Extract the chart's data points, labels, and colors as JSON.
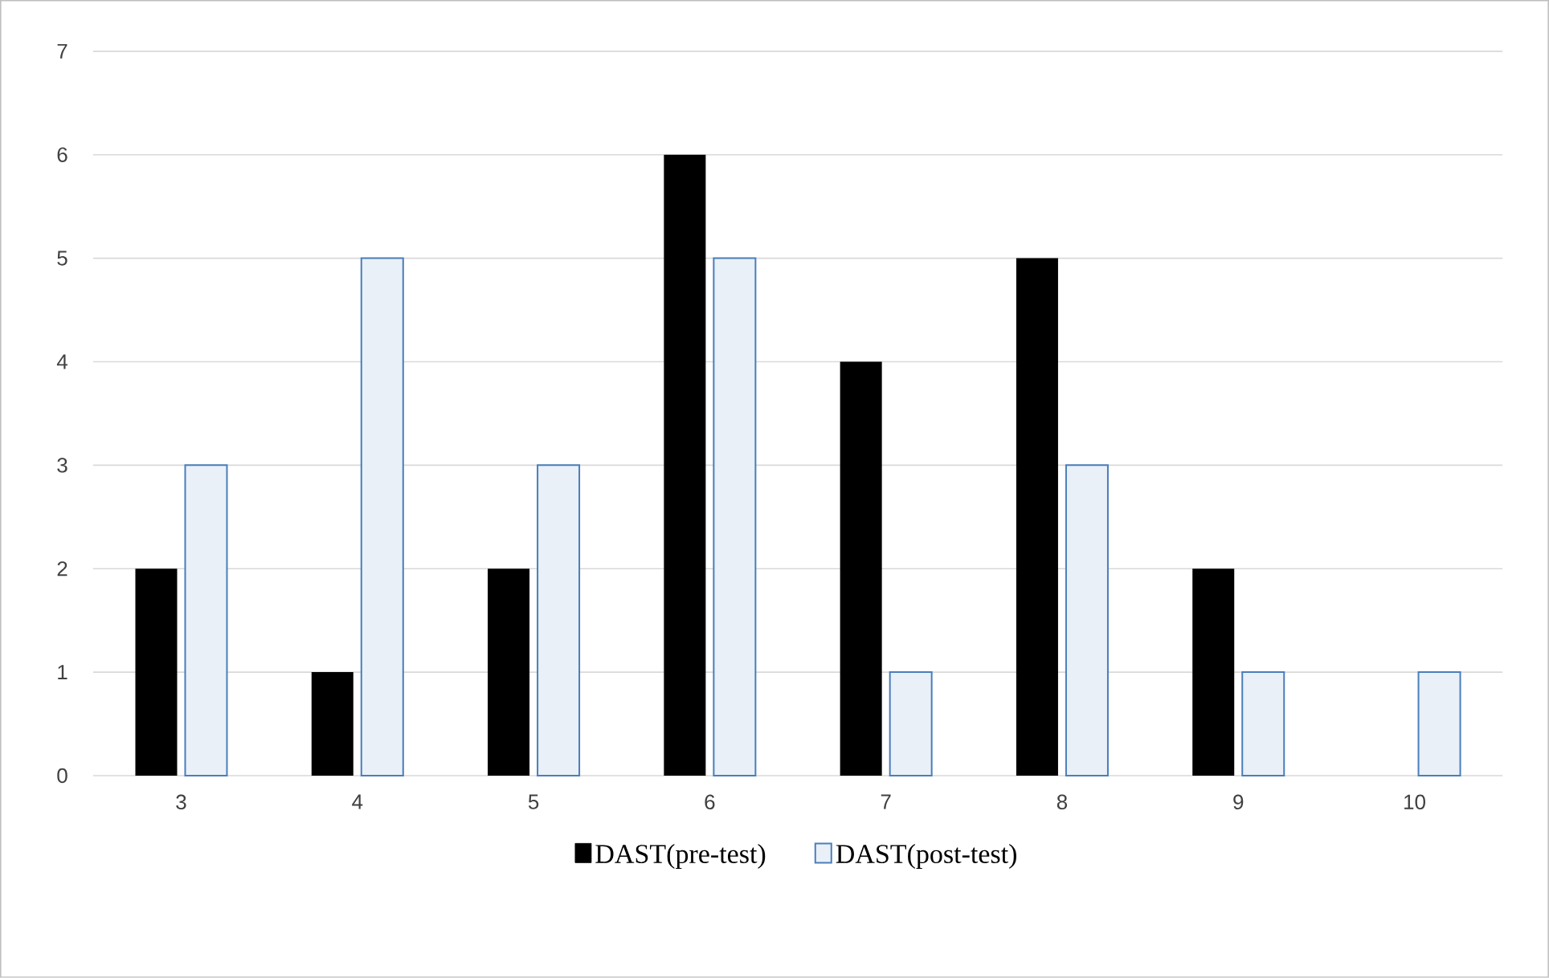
{
  "chart_data": {
    "type": "bar",
    "categories": [
      "3",
      "4",
      "5",
      "6",
      "7",
      "8",
      "9",
      "10"
    ],
    "series": [
      {
        "name": "DAST(pre-test)",
        "color": "#000000",
        "values": [
          2,
          1,
          2,
          6,
          4,
          5,
          2,
          0
        ]
      },
      {
        "name": "DAST(post-test)",
        "color": "#4a7ebb",
        "values": [
          3,
          5,
          3,
          5,
          1,
          3,
          1,
          1
        ]
      }
    ],
    "ylim": [
      0,
      7
    ],
    "yticks": [
      0,
      1,
      2,
      3,
      4,
      5,
      6,
      7
    ],
    "grid": "y",
    "legend": "bottom"
  }
}
